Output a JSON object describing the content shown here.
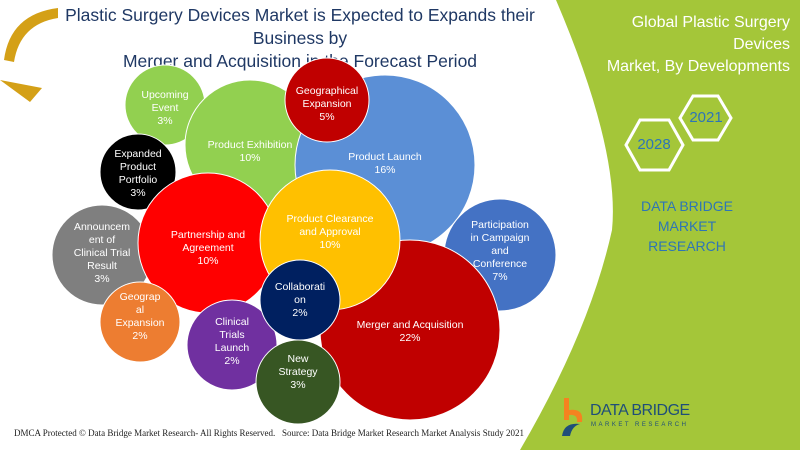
{
  "header": {
    "title_line1": "Plastic Surgery Devices Market is Expected to Expands their Business by",
    "title_line2": "Merger and Acquisition in the Forecast Period"
  },
  "side": {
    "title_line1": "Global Plastic Surgery Devices",
    "title_line2": "Market, By Developments",
    "year_start": "2021",
    "year_end": "2028",
    "brand_line1": "DATA BRIDGE MARKET",
    "brand_line2": "RESEARCH"
  },
  "footer": {
    "copyright": "DMCA Protected © Data Bridge Market Research- All Rights Reserved.",
    "source": "Source: Data Bridge Market Research Market Analysis Study 2021"
  },
  "logo": {
    "name": "DATA BRIDGE",
    "tagline": "MARKET RESEARCH"
  },
  "colors": {
    "panel": "#a4c639",
    "title": "#1f3864",
    "accent": "#2e75b6"
  },
  "chart_data": {
    "type": "bubble",
    "title": "Global Plastic Surgery Devices Market, By Developments",
    "unit": "%",
    "series": [
      {
        "name": "Upcoming Event",
        "value": 3,
        "color": "#92d050"
      },
      {
        "name": "Product Exhibition",
        "value": 10,
        "color": "#92d050"
      },
      {
        "name": "Product Launch",
        "value": 16,
        "color": "#5b8fd6"
      },
      {
        "name": "Geographical Expansion",
        "value": 5,
        "color": "#c00000"
      },
      {
        "name": "Expanded Product Portfolio",
        "value": 3,
        "color": "#000000"
      },
      {
        "name": "Participation in Campaign and Conference",
        "value": 7,
        "color": "#4472c4"
      },
      {
        "name": "Announcement of Clinical Trial Result",
        "value": 3,
        "color": "#7f7f7f"
      },
      {
        "name": "Merger and Acquisition",
        "value": 22,
        "color": "#c00000"
      },
      {
        "name": "Partnership and Agreement",
        "value": 10,
        "color": "#ff0000"
      },
      {
        "name": "Product Clearance and Approval",
        "value": 10,
        "color": "#ffc000"
      },
      {
        "name": "Geographical Expansion",
        "value": 2,
        "color": "#ed7d31"
      },
      {
        "name": "Clinical Trials Launch",
        "value": 2,
        "color": "#7030a0"
      },
      {
        "name": "Collaboration",
        "value": 2,
        "color": "#002060"
      },
      {
        "name": "New Strategy",
        "value": 3,
        "color": "#375623"
      }
    ],
    "labels": [
      [
        "Upcoming",
        "Event",
        "3%"
      ],
      [
        "Product Exhibition",
        "10%"
      ],
      [
        "Product Launch",
        "16%"
      ],
      [
        "Geographical",
        "Expansion",
        "5%"
      ],
      [
        "Expanded",
        "Product",
        "Portfolio",
        "3%"
      ],
      [
        "Participation",
        "in Campaign",
        "and",
        "Conference",
        "7%"
      ],
      [
        "Announcem",
        "ent of",
        "Clinical Trial",
        "Result",
        "3%"
      ],
      [
        "Merger and Acquisition",
        "22%"
      ],
      [
        "Partnership and",
        "Agreement",
        "10%"
      ],
      [
        "Product Clearance",
        "and Approval",
        "10%"
      ],
      [
        "Geograp",
        "al",
        "Expansion",
        "2%"
      ],
      [
        "Clinical",
        "Trials",
        "Launch",
        "2%"
      ],
      [
        "Collaborati",
        "on",
        "2%"
      ],
      [
        "New",
        "Strategy",
        "3%"
      ]
    ]
  }
}
